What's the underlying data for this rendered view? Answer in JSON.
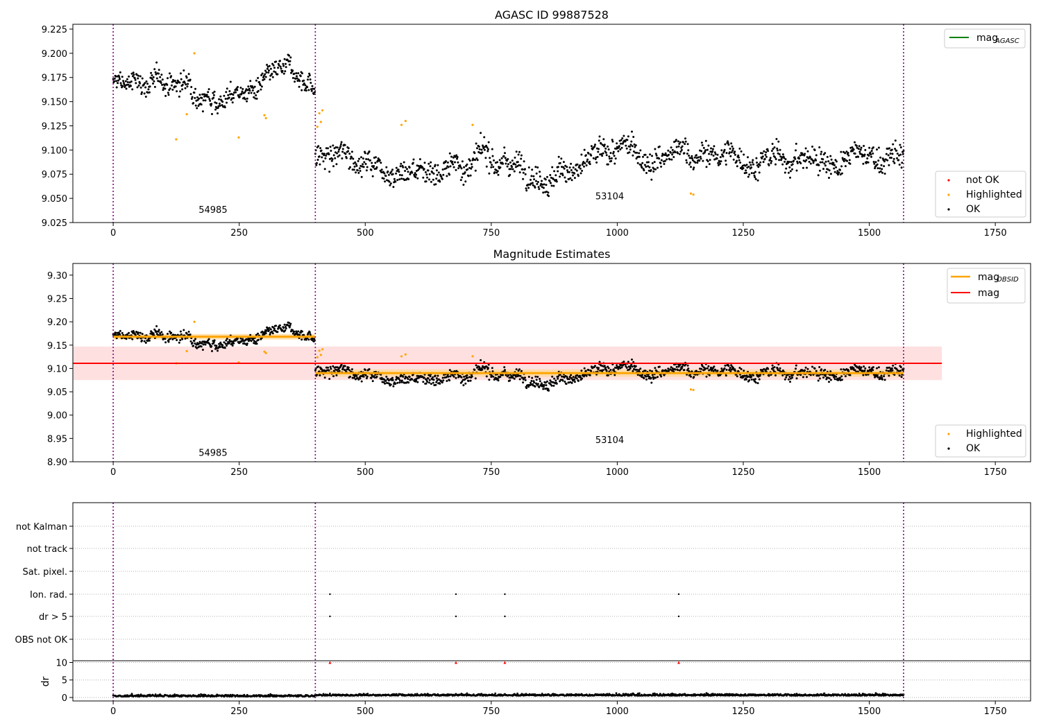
{
  "colors": {
    "ok": "#000000",
    "highlighted": "#ffa500",
    "not_ok": "#ff0000",
    "agasc_line": "#008000",
    "obsid_line": "#ffa500",
    "mag_line": "#ff0000",
    "mag_band": "#ffdddd",
    "obsid_band": "#ffd9a0",
    "boundary": "#800080",
    "grid": "#b0b0b0"
  },
  "chart_data": [
    {
      "type": "scatter",
      "title": "AGASC ID 99887528",
      "xlim": [
        -80,
        1820
      ],
      "ylim": [
        9.025,
        9.23
      ],
      "xticks": [
        0,
        250,
        500,
        750,
        1000,
        1250,
        1500,
        1750
      ],
      "yticks": [
        9.025,
        9.05,
        9.075,
        9.1,
        9.125,
        9.15,
        9.175,
        9.2,
        9.225
      ],
      "obsid_boundaries": [
        0,
        401,
        1568
      ],
      "obsid_labels": [
        {
          "text": "54985",
          "x": 198,
          "y": 9.035
        },
        {
          "text": "53104",
          "x": 985,
          "y": 9.049
        }
      ],
      "segments": [
        {
          "x_start": 0,
          "x_end": 400,
          "level": 9.168,
          "noise": 0.009
        },
        {
          "x_start": 401,
          "x_end": 1568,
          "level": 9.09,
          "noise": 0.011
        }
      ],
      "highlighted": [
        {
          "x": 125,
          "y": 9.111
        },
        {
          "x": 146,
          "y": 9.137
        },
        {
          "x": 161,
          "y": 9.2
        },
        {
          "x": 249,
          "y": 9.113
        },
        {
          "x": 300,
          "y": 9.136
        },
        {
          "x": 303,
          "y": 9.133
        },
        {
          "x": 405,
          "y": 9.124
        },
        {
          "x": 409,
          "y": 9.138
        },
        {
          "x": 412,
          "y": 9.129
        },
        {
          "x": 415,
          "y": 9.141
        },
        {
          "x": 572,
          "y": 9.126
        },
        {
          "x": 580,
          "y": 9.13
        },
        {
          "x": 713,
          "y": 9.126
        },
        {
          "x": 1146,
          "y": 9.055
        },
        {
          "x": 1151,
          "y": 9.054
        }
      ],
      "legend_top": [
        {
          "label": "mag",
          "sub": "AGASC",
          "color": "#008000",
          "kind": "line"
        }
      ],
      "legend_bottom": [
        {
          "label": "not OK",
          "color": "#ff0000",
          "kind": "dot"
        },
        {
          "label": "Highlighted",
          "color": "#ffa500",
          "kind": "dot"
        },
        {
          "label": "OK",
          "color": "#000000",
          "kind": "dot"
        }
      ]
    },
    {
      "type": "scatter",
      "title": "Magnitude Estimates",
      "xlim": [
        -80,
        1820
      ],
      "ylim": [
        8.9,
        9.325
      ],
      "xticks": [
        0,
        250,
        500,
        750,
        1000,
        1250,
        1500,
        1750
      ],
      "yticks": [
        8.9,
        8.95,
        9.0,
        9.05,
        9.1,
        9.15,
        9.2,
        9.25,
        9.3
      ],
      "obsid_boundaries": [
        0,
        401,
        1568
      ],
      "obsid_labels": [
        {
          "text": "54985",
          "x": 198,
          "y": 8.913
        },
        {
          "text": "53104",
          "x": 985,
          "y": 8.94
        }
      ],
      "mag": 9.111,
      "mag_band": [
        9.075,
        9.147
      ],
      "mag_band_x": [
        -80,
        1644
      ],
      "obsid_mags": [
        {
          "x_start": 0,
          "x_end": 400,
          "mag": 9.168,
          "band": [
            9.162,
            9.174
          ]
        },
        {
          "x_start": 401,
          "x_end": 1568,
          "mag": 9.09,
          "band": [
            9.082,
            9.098
          ]
        }
      ],
      "legend_top": [
        {
          "label": "mag",
          "sub": "OBSID",
          "color": "#ffa500",
          "kind": "line"
        },
        {
          "label": "mag",
          "sub": "",
          "color": "#ff0000",
          "kind": "line"
        }
      ],
      "legend_bottom": [
        {
          "label": "Highlighted",
          "color": "#ffa500",
          "kind": "dot"
        },
        {
          "label": "OK",
          "color": "#000000",
          "kind": "dot"
        }
      ]
    },
    {
      "type": "scatter",
      "flags": [
        "not Kalman",
        "not track",
        "Sat. pixel.",
        "Ion. rad.",
        "dr > 5",
        "OBS not OK"
      ],
      "flag_points": [
        {
          "flag": "Ion. rad.",
          "x": [
            430,
            680,
            777,
            1122
          ]
        },
        {
          "flag": "dr > 5",
          "x": [
            430,
            680,
            777,
            1122
          ]
        }
      ],
      "dr": {
        "ylabel": "dr",
        "yticks": [
          0,
          5,
          10
        ],
        "ylim": [
          -1,
          10.5
        ],
        "outliers_x": [
          430,
          680,
          777,
          1122
        ],
        "outlier_value": 10
      },
      "xlim": [
        -80,
        1820
      ],
      "xticks": [
        0,
        250,
        500,
        750,
        1000,
        1250,
        1500,
        1750
      ],
      "obsid_boundaries": [
        0,
        401,
        1568
      ]
    }
  ]
}
